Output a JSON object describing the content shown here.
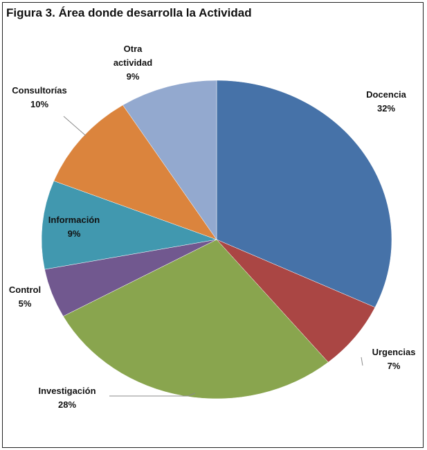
{
  "chart_data": {
    "type": "pie",
    "title": "Figura 3. Área donde desarrolla la Actividad",
    "slices": [
      {
        "label": "Docencia",
        "value": 32,
        "value_label": "32%",
        "color": "#4672A8"
      },
      {
        "label": "Urgencias",
        "value": 7,
        "value_label": "7%",
        "color": "#AA4644"
      },
      {
        "label": "Investigación",
        "value": 28,
        "value_label": "28%",
        "color": "#89A54E"
      },
      {
        "label": "Control",
        "value": 5,
        "value_label": "5%",
        "color": "#71588F"
      },
      {
        "label": "Información",
        "value": 9,
        "value_label": "9%",
        "color": "#4198AF"
      },
      {
        "label": "Consultorías",
        "value": 10,
        "value_label": "10%",
        "color": "#DB843D"
      },
      {
        "label": "Otra actividad",
        "label_lines": [
          "Otra",
          "actividad"
        ],
        "value": 9,
        "value_label": "9%",
        "color": "#93A9CF"
      }
    ],
    "legend": "none"
  }
}
